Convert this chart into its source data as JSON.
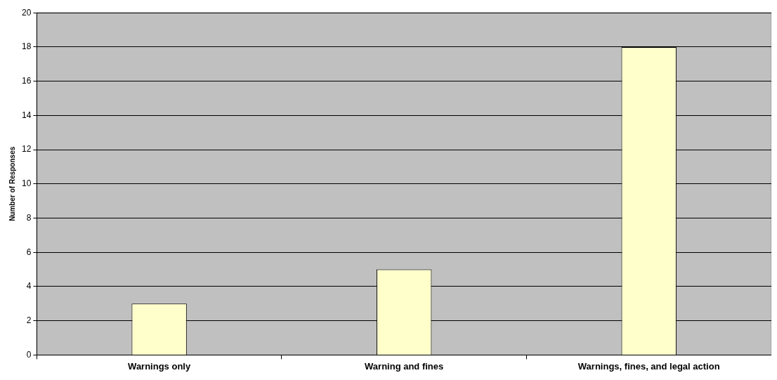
{
  "chart_data": {
    "type": "bar",
    "ylabel": "Number of Responses",
    "categories": [
      "Warnings only",
      "Warning and fines",
      "Warnings, fines, and legal action"
    ],
    "values": [
      3,
      5,
      18
    ],
    "color": "#ffffcc",
    "ylim": [
      0,
      20
    ],
    "yticks": [
      0,
      2,
      4,
      6,
      8,
      10,
      12,
      14,
      16,
      18,
      20
    ],
    "grid": "y",
    "legend": false
  }
}
